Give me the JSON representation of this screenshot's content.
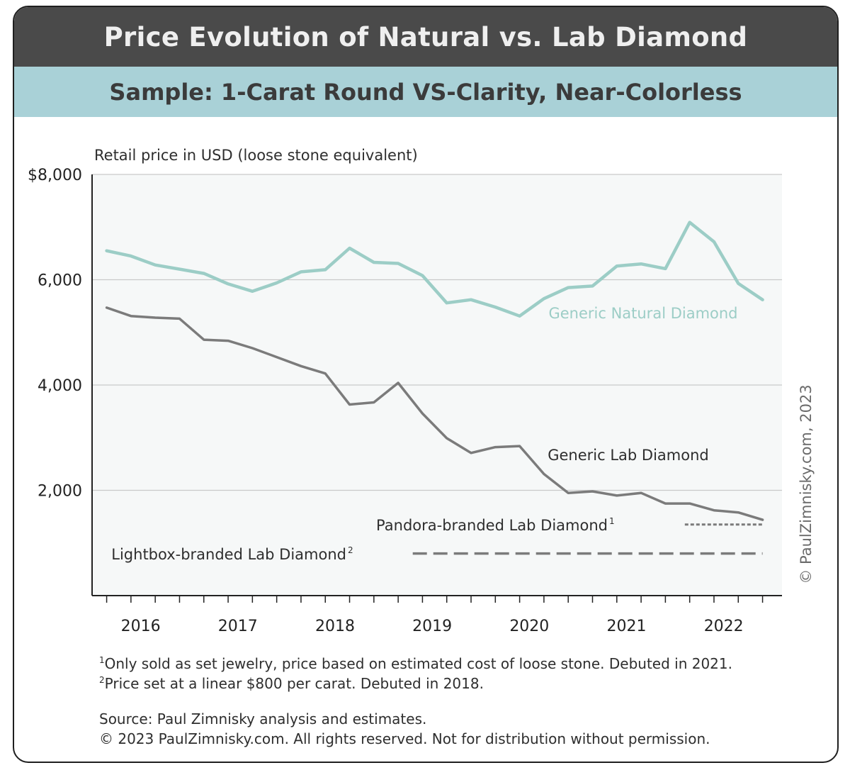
{
  "title": "Price Evolution of Natural vs. Lab Diamond",
  "subtitle": "Sample: 1-Carat Round VS-Clarity, Near-Colorless",
  "chart_data": {
    "type": "line",
    "ylabel": "Retail price in USD (loose stone equivalent)",
    "ylim": [
      0,
      8000
    ],
    "xlim": [
      2015.6,
      2022.7
    ],
    "y_ticks": [
      {
        "value": 8000,
        "label": "$8,000"
      },
      {
        "value": 6000,
        "label": "6,000"
      },
      {
        "value": 4000,
        "label": "4,000"
      },
      {
        "value": 2000,
        "label": "2,000"
      }
    ],
    "x_ticks": [
      {
        "value": 2016,
        "label": "2016"
      },
      {
        "value": 2017,
        "label": "2017"
      },
      {
        "value": 2018,
        "label": "2018"
      },
      {
        "value": 2019,
        "label": "2019"
      },
      {
        "value": 2020,
        "label": "2020"
      },
      {
        "value": 2021,
        "label": "2021"
      },
      {
        "value": 2022,
        "label": "2022"
      }
    ],
    "grid": true,
    "background_color": "#f6f8f8",
    "series": [
      {
        "name": "Generic Natural Diamond",
        "color": "#9ccdc6",
        "style": "solid",
        "x": [
          2015.75,
          2016.0,
          2016.25,
          2016.5,
          2016.75,
          2017.0,
          2017.25,
          2017.5,
          2017.75,
          2018.0,
          2018.25,
          2018.5,
          2018.75,
          2019.0,
          2019.25,
          2019.5,
          2019.75,
          2020.0,
          2020.25,
          2020.5,
          2020.75,
          2021.0,
          2021.25,
          2021.5,
          2021.75,
          2022.0,
          2022.25,
          2022.5
        ],
        "y": [
          6550,
          6450,
          6280,
          6200,
          6120,
          5920,
          5780,
          5940,
          6150,
          6190,
          6600,
          6330,
          6310,
          6080,
          5560,
          5620,
          5480,
          5310,
          5640,
          5850,
          5880,
          6260,
          6300,
          6210,
          7090,
          6720,
          5930,
          5620
        ]
      },
      {
        "name": "Generic Lab Diamond",
        "color": "#7b7b7b",
        "style": "solid",
        "x": [
          2015.75,
          2016.0,
          2016.25,
          2016.5,
          2016.75,
          2017.0,
          2017.25,
          2017.5,
          2017.75,
          2018.0,
          2018.25,
          2018.5,
          2018.75,
          2019.0,
          2019.25,
          2019.5,
          2019.75,
          2020.0,
          2020.25,
          2020.5,
          2020.75,
          2021.0,
          2021.25,
          2021.5,
          2021.75,
          2022.0,
          2022.25,
          2022.5
        ],
        "y": [
          5470,
          5310,
          5280,
          5260,
          4860,
          4840,
          4700,
          4530,
          4360,
          4220,
          3630,
          3670,
          4040,
          3460,
          2990,
          2710,
          2820,
          2840,
          2310,
          1950,
          1980,
          1900,
          1950,
          1750,
          1750,
          1620,
          1580,
          1440
        ]
      },
      {
        "name": "Pandora-branded Lab Diamond",
        "footnote_mark": "1",
        "color": "#7b7b7b",
        "style": "dotted",
        "x": [
          2021.7,
          2022.5
        ],
        "y": [
          1350,
          1350
        ]
      },
      {
        "name": "Lightbox-branded Lab Diamond",
        "footnote_mark": "2",
        "color": "#7b7b7b",
        "style": "dashed",
        "x": [
          2018.9,
          2022.5
        ],
        "y": [
          800,
          800
        ]
      }
    ]
  },
  "watermark": "© PaulZimnisky.com, 2023",
  "footnotes": [
    {
      "mark": "1",
      "text": "Only sold as set jewelry, price based on estimated cost of loose stone. Debuted in 2021."
    },
    {
      "mark": "2",
      "text": "Price set at a linear $800 per carat. Debuted in 2018."
    }
  ],
  "source": "Source: Paul Zimnisky analysis and estimates.",
  "copyright": "© 2023 PaulZimnisky.com. All rights reserved. Not for distribution without permission."
}
